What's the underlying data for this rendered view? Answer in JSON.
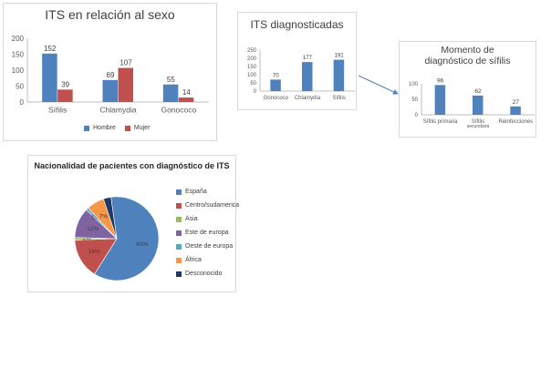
{
  "colors": {
    "blue": "#4f81bd",
    "red": "#c0504d",
    "green": "#9bbb59",
    "purple": "#8064a2",
    "aqua": "#4bacc6",
    "orange": "#f79646",
    "navy": "#1f3864",
    "axis": "#bfbfbf",
    "grid": "#d9d9d9"
  },
  "chart_data": [
    {
      "id": "sexo",
      "type": "bar",
      "title": "ITS en relación al sexo",
      "categories": [
        "Sífilis",
        "Chlamydia",
        "Gonococo"
      ],
      "series": [
        {
          "name": "Hombre",
          "values": [
            152,
            69,
            55
          ],
          "color": "#4f81bd"
        },
        {
          "name": "Mujer",
          "values": [
            39,
            107,
            14
          ],
          "color": "#c0504d"
        }
      ],
      "ylim": [
        0,
        200
      ],
      "yticks": [
        "0",
        "50",
        "100",
        "150",
        "200"
      ],
      "grid": false,
      "legend": "bottom"
    },
    {
      "id": "diag",
      "type": "bar",
      "title": "ITS diagnosticadas",
      "categories": [
        "Gonococo",
        "Chlamydia",
        "Sífilis"
      ],
      "series": [
        {
          "values": [
            70,
            177,
            191
          ],
          "color": "#4f81bd"
        }
      ],
      "ylim": [
        0,
        250
      ],
      "yticks": [
        "0",
        "50",
        "100",
        "150",
        "200",
        "250"
      ],
      "grid": false
    },
    {
      "id": "momento",
      "type": "bar",
      "title": "Momento de diagnóstico de sífilis",
      "categories": [
        "Sífilis primaria",
        "Sífilis secundaria",
        "Reinfecciones"
      ],
      "series": [
        {
          "values": [
            96,
            62,
            27
          ],
          "color": "#4f81bd"
        }
      ],
      "ylim": [
        0,
        100
      ],
      "yticks": [
        "0",
        "50",
        "100"
      ],
      "grid": false
    },
    {
      "id": "nacionalidad",
      "type": "pie",
      "title": "Nacionalidad de pacientes con diagnóstico de ITS",
      "slices": [
        {
          "name": "España",
          "value": 63,
          "label": "63%",
          "color": "#4f81bd"
        },
        {
          "name": "Centro/sudamerica",
          "value": 16,
          "label": "16%",
          "color": "#c0504d"
        },
        {
          "name": "Asia",
          "value": 1,
          "label": "1%",
          "color": "#9bbb59"
        },
        {
          "name": "Este de europa",
          "value": 12,
          "label": "12%",
          "color": "#8064a2"
        },
        {
          "name": "Oeste de europa",
          "value": 1,
          "label": "1%",
          "color": "#4bacc6"
        },
        {
          "name": "África",
          "value": 7,
          "label": "7%",
          "color": "#f79646"
        },
        {
          "name": "Desconocido",
          "value": 3,
          "label": "",
          "color": "#1f3864"
        }
      ],
      "legend": "right"
    }
  ]
}
